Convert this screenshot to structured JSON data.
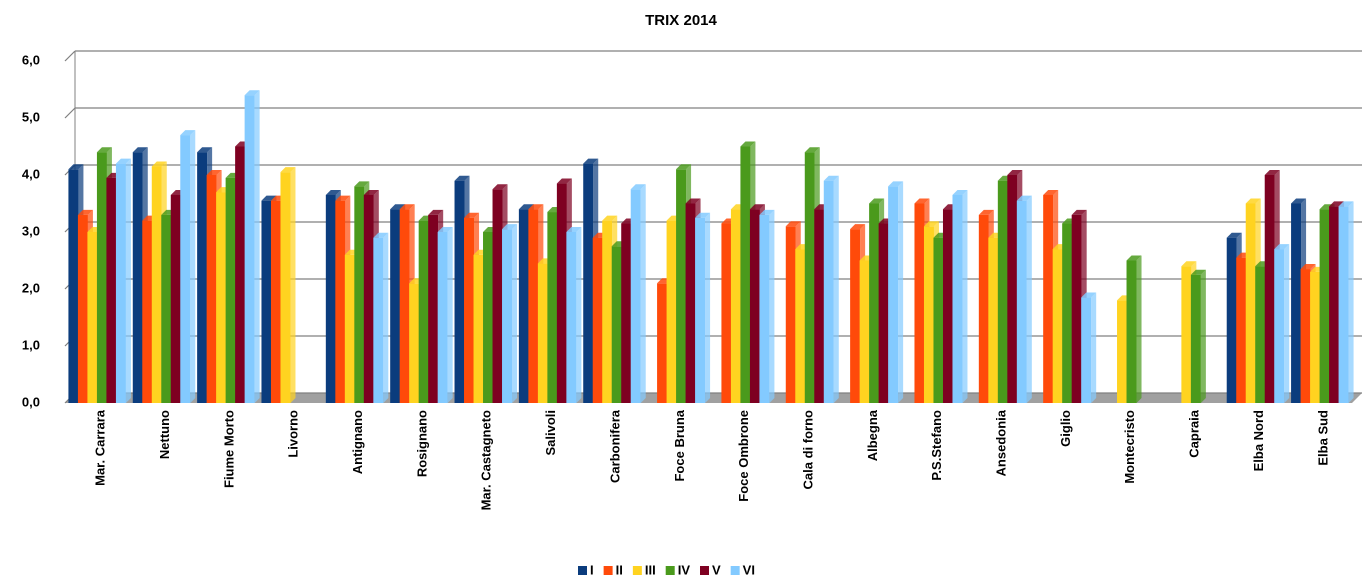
{
  "chart_data": {
    "type": "bar",
    "title": "TRIX 2014",
    "categories": [
      "Mar. Carrara",
      "Nettuno",
      "Fiume Morto",
      "Livorno",
      "Antignano",
      "Rosignano",
      "Mar. Castagneto",
      "Salivoli",
      "Carbonifera",
      "Foce Bruna",
      "Foce Ombrone",
      "Cala di forno",
      "Albegna",
      "P.S.Stefano",
      "Ansedonia",
      "Giglio",
      "Montecristo",
      "Capraia",
      "Elba Nord",
      "Elba Sud"
    ],
    "series": [
      {
        "name": "I",
        "color": "#0b3c7d",
        "values": [
          4.1,
          4.4,
          4.4,
          3.55,
          3.65,
          3.4,
          3.9,
          3.4,
          4.2,
          null,
          null,
          null,
          null,
          null,
          null,
          null,
          null,
          null,
          2.9,
          3.5
        ]
      },
      {
        "name": "II",
        "color": "#ff4a0a",
        "values": [
          3.3,
          3.2,
          4.0,
          3.55,
          3.55,
          3.4,
          3.25,
          3.4,
          2.9,
          2.1,
          3.15,
          3.1,
          3.05,
          3.5,
          3.3,
          3.65,
          null,
          null,
          2.55,
          2.35
        ]
      },
      {
        "name": "III",
        "color": "#ffd320",
        "values": [
          3.0,
          4.15,
          3.7,
          4.05,
          2.6,
          2.1,
          2.6,
          2.45,
          3.2,
          3.2,
          3.4,
          2.7,
          2.5,
          3.1,
          2.9,
          2.7,
          1.8,
          2.4,
          3.5,
          2.3
        ]
      },
      {
        "name": "IV",
        "color": "#4a9a1c",
        "values": [
          4.4,
          3.3,
          3.95,
          null,
          3.8,
          3.2,
          3.0,
          3.35,
          2.75,
          4.1,
          4.5,
          4.4,
          3.5,
          2.9,
          3.9,
          3.15,
          2.5,
          2.25,
          2.4,
          3.4
        ]
      },
      {
        "name": "V",
        "color": "#7e0021",
        "values": [
          3.95,
          3.65,
          4.5,
          null,
          3.65,
          3.3,
          3.75,
          3.85,
          3.15,
          3.5,
          3.4,
          3.4,
          3.15,
          3.4,
          4.0,
          3.3,
          null,
          null,
          4.0,
          3.45
        ]
      },
      {
        "name": "VI",
        "color": "#83caff",
        "values": [
          4.2,
          4.7,
          5.4,
          null,
          2.9,
          3.0,
          3.05,
          3.0,
          3.75,
          3.25,
          3.3,
          3.9,
          3.8,
          3.65,
          3.55,
          1.85,
          null,
          null,
          2.7,
          3.45
        ]
      }
    ],
    "ylim": [
      0,
      6
    ],
    "yticks": [
      {
        "value": 0,
        "label": "0,0"
      },
      {
        "value": 1,
        "label": "1,0"
      },
      {
        "value": 2,
        "label": "2,0"
      },
      {
        "value": 3,
        "label": "3,0"
      },
      {
        "value": 4,
        "label": "4,0"
      },
      {
        "value": 5,
        "label": "5,0"
      },
      {
        "value": 6,
        "label": "6,0"
      }
    ],
    "grid": true
  }
}
